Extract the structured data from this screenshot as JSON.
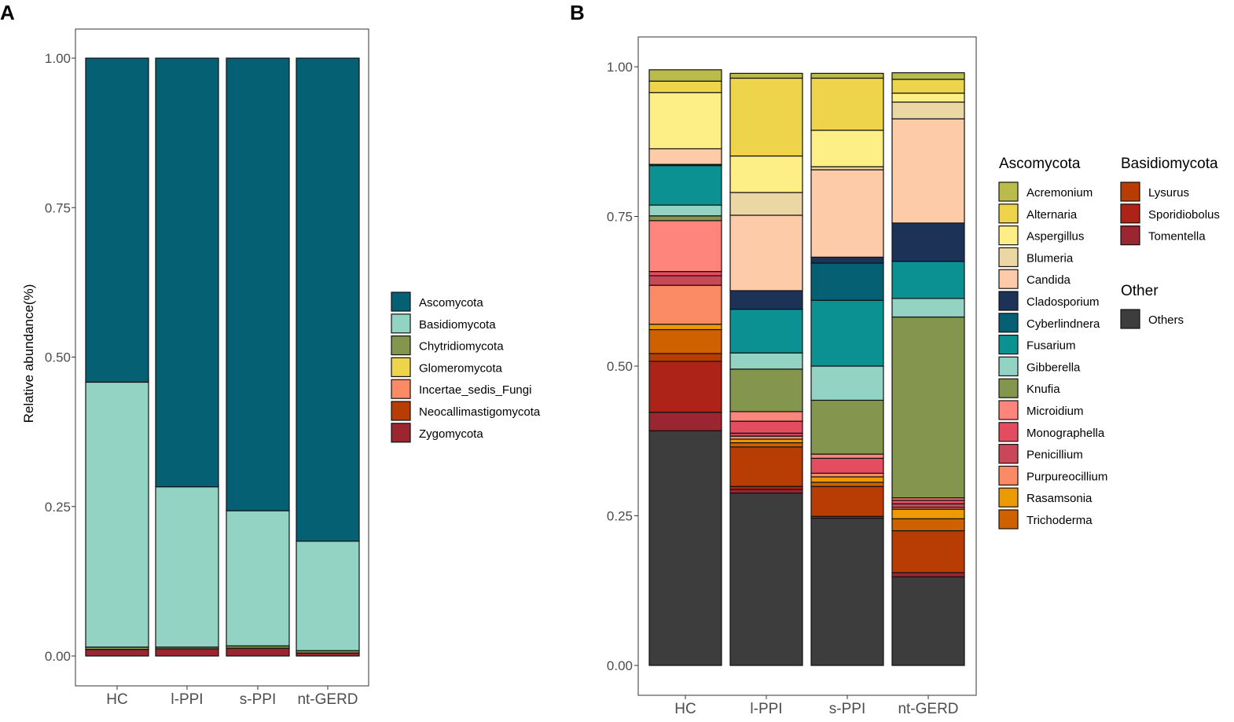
{
  "chart_data": [
    {
      "panel": "A",
      "type": "bar",
      "stacked": true,
      "categories": [
        "HC",
        "l-PPI",
        "s-PPI",
        "nt-GERD"
      ],
      "ylabel": "Relative abundance(%)",
      "xlabel": "",
      "ylim": [
        0,
        1.05
      ],
      "yticks": [
        0,
        0.25,
        0.5,
        0.75,
        1.0
      ],
      "ytick_labels": [
        "0.00",
        "0.25",
        "0.50",
        "0.75",
        "1.00"
      ],
      "legend_position": "right",
      "series": [
        {
          "name": "Zygomycota",
          "color": "#9b2530",
          "values": [
            0.011,
            0.012,
            0.013,
            0.005
          ]
        },
        {
          "name": "Neocallimastigomycota",
          "color": "#b83d05",
          "values": [
            0.0,
            0.0,
            0.0,
            0.0
          ]
        },
        {
          "name": "Incertae_sedis_Fungi",
          "color": "#fb8b65",
          "values": [
            0.0,
            0.0,
            0.0,
            0.0
          ]
        },
        {
          "name": "Glomeromycota",
          "color": "#edd44a",
          "values": [
            0.0,
            0.0,
            0.0,
            0.0
          ]
        },
        {
          "name": "Chytridiomycota",
          "color": "#84964e",
          "values": [
            0.004,
            0.003,
            0.004,
            0.004
          ]
        },
        {
          "name": "Basidiomycota",
          "color": "#93d3c4",
          "values": [
            0.443,
            0.268,
            0.226,
            0.183
          ]
        },
        {
          "name": "Ascomycota",
          "color": "#046072",
          "values": [
            0.542,
            0.717,
            0.757,
            0.808
          ]
        }
      ],
      "legend_order": [
        "Ascomycota",
        "Basidiomycota",
        "Chytridiomycota",
        "Glomeromycota",
        "Incertae_sedis_Fungi",
        "Neocallimastigomycota",
        "Zygomycota"
      ]
    },
    {
      "panel": "B",
      "type": "bar",
      "stacked": true,
      "categories": [
        "HC",
        "l-PPI",
        "s-PPI",
        "nt-GERD"
      ],
      "ylabel": "",
      "xlabel": "",
      "ylim": [
        0,
        1.05
      ],
      "yticks": [
        0,
        0.25,
        0.5,
        0.75,
        1.0
      ],
      "ytick_labels": [
        "0.00",
        "0.25",
        "0.50",
        "0.75",
        "1.00"
      ],
      "legend_position": "right",
      "series": [
        {
          "name": "Others",
          "color": "#3d3d3d",
          "values": [
            0.392,
            0.288,
            0.246,
            0.148
          ]
        },
        {
          "name": "Tomentella",
          "color": "#9b2530",
          "values": [
            0.031,
            0.006,
            0.003,
            0.007
          ]
        },
        {
          "name": "Sporidiobolus",
          "color": "#ae2318",
          "values": [
            0.085,
            0.005,
            0.0,
            0.0
          ]
        },
        {
          "name": "Lysurus",
          "color": "#b83d05",
          "values": [
            0.013,
            0.066,
            0.05,
            0.07
          ]
        },
        {
          "name": "Trichoderma",
          "color": "#cf6100",
          "values": [
            0.04,
            0.007,
            0.007,
            0.02
          ]
        },
        {
          "name": "Rasamsonia",
          "color": "#eb9a04",
          "values": [
            0.009,
            0.006,
            0.009,
            0.016
          ]
        },
        {
          "name": "Purpureocillium",
          "color": "#fb8b65",
          "values": [
            0.065,
            0.005,
            0.006,
            0.003
          ]
        },
        {
          "name": "Penicillium",
          "color": "#c94858",
          "values": [
            0.016,
            0.005,
            0.0,
            0.006
          ]
        },
        {
          "name": "Monographella",
          "color": "#e44d5f",
          "values": [
            0.007,
            0.02,
            0.025,
            0.006
          ]
        },
        {
          "name": "Microidium",
          "color": "#fe857c",
          "values": [
            0.085,
            0.016,
            0.007,
            0.004
          ]
        },
        {
          "name": "Knufia",
          "color": "#84964e",
          "values": [
            0.008,
            0.071,
            0.09,
            0.302
          ]
        },
        {
          "name": "Gibberella",
          "color": "#93d3c4",
          "values": [
            0.018,
            0.027,
            0.057,
            0.031
          ]
        },
        {
          "name": "Fusarium",
          "color": "#0b9192",
          "values": [
            0.066,
            0.073,
            0.11,
            0.062
          ]
        },
        {
          "name": "Cyberlindnera",
          "color": "#046072",
          "values": [
            0.002,
            0.0,
            0.062,
            0.0
          ]
        },
        {
          "name": "Cladosporium",
          "color": "#1c3357",
          "values": [
            0.0,
            0.031,
            0.01,
            0.064
          ]
        },
        {
          "name": "Candida",
          "color": "#fdcba7",
          "values": [
            0.026,
            0.126,
            0.146,
            0.174
          ]
        },
        {
          "name": "Blumeria",
          "color": "#ebd7a4",
          "values": [
            0.0,
            0.038,
            0.005,
            0.028
          ]
        },
        {
          "name": "Aspergillus",
          "color": "#fdee86",
          "values": [
            0.094,
            0.061,
            0.061,
            0.015
          ]
        },
        {
          "name": "Alternaria",
          "color": "#edd44a",
          "values": [
            0.019,
            0.13,
            0.087,
            0.023
          ]
        },
        {
          "name": "Acremonium",
          "color": "#b9bc4a",
          "values": [
            0.019,
            0.008,
            0.008,
            0.011
          ]
        }
      ],
      "legend_groups": [
        {
          "title": "Ascomycota",
          "items": [
            "Acremonium",
            "Alternaria",
            "Aspergillus",
            "Blumeria",
            "Candida",
            "Cladosporium",
            "Cyberlindnera",
            "Fusarium",
            "Gibberella",
            "Knufia",
            "Microidium",
            "Monographella",
            "Penicillium",
            "Purpureocillium",
            "Rasamsonia",
            "Trichoderma"
          ]
        },
        {
          "title": "Basidiomycota",
          "items": [
            "Lysurus",
            "Sporidiobolus",
            "Tomentella"
          ]
        },
        {
          "title": "Other",
          "items": [
            "Others"
          ]
        }
      ]
    }
  ]
}
